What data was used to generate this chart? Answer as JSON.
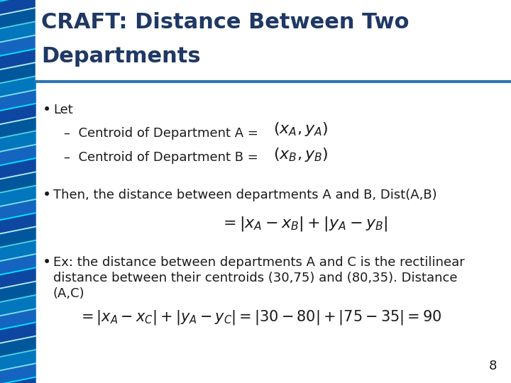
{
  "title_line1": "CRAFT: Distance Between Two",
  "title_line2": "Departments",
  "title_color": "#1F3864",
  "title_fontsize": 22,
  "separator_color": "#2E75B6",
  "bullet1_text": "Let",
  "bullet1_sub1": "–  Centroid of Department A = ",
  "bullet1_sub2": "–  Centroid of Department B = ",
  "bullet2_text": "Then, the distance between departments A and B, Dist(A,B)",
  "bullet3_line1": "Ex: the distance between departments A and C is the rectilinear",
  "bullet3_line2": "distance between their centroids (30,75) and (80,35). Distance",
  "bullet3_line3": "(A,C)",
  "bullet_color": "#1a1a1a",
  "body_fontsize": 13,
  "formula_fontsize_small": 14,
  "formula_fontsize_large": 15,
  "page_number": "8",
  "bg_color": "#ffffff",
  "stripe_colors_light": [
    "#00E5FF",
    "#80FFFF",
    "#00BCD4",
    "#4DD0E1",
    "#B2EBF2"
  ],
  "stripe_colors_dark": [
    "#0D47A1",
    "#1565C0",
    "#0288D1",
    "#01579B",
    "#1976D2"
  ]
}
